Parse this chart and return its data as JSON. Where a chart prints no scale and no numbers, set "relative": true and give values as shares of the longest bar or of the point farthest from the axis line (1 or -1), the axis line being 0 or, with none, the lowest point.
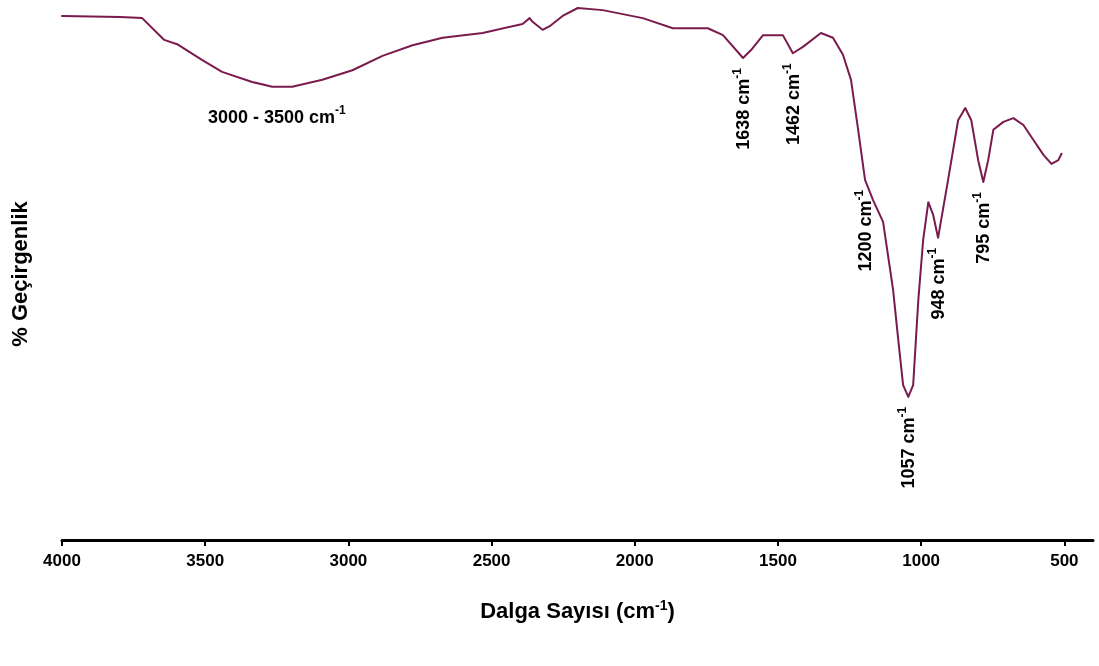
{
  "chart_data": {
    "type": "line",
    "relative": true,
    "xlabel": "Dalga Sayısı (cm$^{-1}$)",
    "ylabel": "% Geçirgenlik",
    "xlim": [
      4000,
      400
    ],
    "xticks": [
      4000,
      3500,
      3000,
      2500,
      2000,
      1500,
      1000,
      500
    ],
    "grid": false,
    "marker": "none",
    "line_style": "solid",
    "series": [
      {
        "color": "#7a1b4e",
        "x": [
          4000,
          3797,
          3720,
          3643,
          3598,
          3510,
          3441,
          3336,
          3266,
          3196,
          3091,
          2986,
          2881,
          2776,
          2671,
          2531,
          2392,
          2367,
          2357,
          2322,
          2294,
          2252,
          2199,
          2112,
          1972,
          1867,
          1745,
          1692,
          1622,
          1594,
          1552,
          1483,
          1448,
          1413,
          1350,
          1308,
          1273,
          1245,
          1220,
          1196,
          1168,
          1133,
          1098,
          1080,
          1063,
          1045,
          1028,
          1010,
          993,
          975,
          958,
          941,
          906,
          871,
          846,
          825,
          801,
          783,
          766,
          748,
          713,
          678,
          643,
          608,
          573,
          545,
          521,
          510
        ],
        "values": [
          0.985,
          0.983,
          0.981,
          0.94,
          0.932,
          0.902,
          0.88,
          0.861,
          0.852,
          0.852,
          0.865,
          0.883,
          0.91,
          0.93,
          0.944,
          0.953,
          0.97,
          0.981,
          0.974,
          0.959,
          0.967,
          0.985,
          1.0,
          0.996,
          0.981,
          0.962,
          0.962,
          0.949,
          0.906,
          0.921,
          0.949,
          0.949,
          0.915,
          0.927,
          0.953,
          0.944,
          0.912,
          0.865,
          0.771,
          0.677,
          0.639,
          0.598,
          0.47,
          0.376,
          0.291,
          0.269,
          0.291,
          0.451,
          0.564,
          0.635,
          0.611,
          0.568,
          0.677,
          0.789,
          0.812,
          0.789,
          0.714,
          0.673,
          0.714,
          0.771,
          0.786,
          0.793,
          0.78,
          0.752,
          0.724,
          0.707,
          0.714,
          0.726
        ]
      }
    ],
    "annotations": [
      {
        "text": "3000 - 3500 cm$^{-1}$",
        "x": 3250,
        "y": 0.852
      },
      {
        "text": "1638 cm$^{-1}$",
        "x": 1622,
        "y": 0.906
      },
      {
        "text": "1462 cm$^{-1}$",
        "x": 1448,
        "y": 0.915
      },
      {
        "text": "1200 cm$^{-1}$",
        "x": 1196,
        "y": 0.677
      },
      {
        "text": "1057 cm$^{-1}$",
        "x": 1045,
        "y": 0.269
      },
      {
        "text": "948 cm$^{-1}$",
        "x": 941,
        "y": 0.568
      },
      {
        "text": "795 cm$^{-1}$",
        "x": 783,
        "y": 0.673
      }
    ]
  }
}
